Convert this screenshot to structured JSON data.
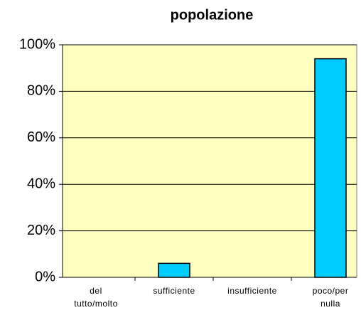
{
  "chart_data": {
    "type": "bar",
    "title": "popolazione",
    "categories": [
      "del tutto/molto",
      "sufficiente",
      "insufficiente",
      "poco/per nulla"
    ],
    "values": [
      0,
      6,
      0,
      94
    ],
    "color": "#00ccff",
    "ylim": [
      0,
      100
    ],
    "yticks": [
      {
        "value": 0,
        "label": "0%"
      },
      {
        "value": 20,
        "label": "20%"
      },
      {
        "value": 40,
        "label": "40%"
      },
      {
        "value": 60,
        "label": "60%"
      },
      {
        "value": 80,
        "label": "80%"
      },
      {
        "value": 100,
        "label": "100%"
      }
    ],
    "grid": true
  }
}
